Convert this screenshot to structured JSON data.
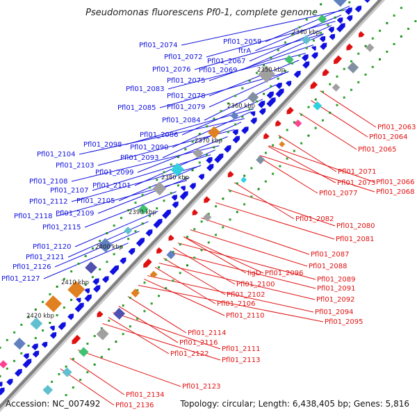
{
  "header": {
    "title": "Pseudomonas fluorescens Pf0-1, complete genome"
  },
  "footer": {
    "accession": "Accession: NC_007492",
    "summary": "Topology: circular; Length: 6,438,405 bp; Genes: 5,816"
  },
  "colors": {
    "forward_gene": "#1010e0",
    "reverse_gene": "#e01010",
    "backbone": "#909090",
    "tick_green": "#1a8a1a"
  },
  "scale_ticks": [
    "2340 kbp",
    "2350 kbp",
    "2360 kbp",
    "2370 kbp",
    "2380 kbp",
    "2390 kbp",
    "2400 kbp",
    "2410 kbp",
    "2420 kbp"
  ],
  "labels_left": [
    "Pfl01_2059",
    "ftrA",
    "Pfl01_2074",
    "Pfl01_2072",
    "Pfl01_2067",
    "Pfl01_2076",
    "Pfl01_2069",
    "Pfl01_2075",
    "Pfl01_2083",
    "Pfl01_2078",
    "Pfl01_2085",
    "Pfl01_2079",
    "Pfl01_2084",
    "Pfl01_2086",
    "Pfl01_2098",
    "Pfl01_2090",
    "Pfl01_2104",
    "Pfl01_2093",
    "Pfl01_2103",
    "Pfl01_2099",
    "Pfl01_2108",
    "Pfl01_2101",
    "Pfl01_2107",
    "Pfl01_2112",
    "Pfl01_2105",
    "Pfl01_2109",
    "Pfl01_2118",
    "Pfl01_2115",
    "Pfl01_2120",
    "Pfl01_2121",
    "Pfl01_2126",
    "Pfl01_2127"
  ],
  "labels_right": [
    "Pfl01_2063",
    "Pfl01_2064",
    "Pfl01_2065",
    "Pfl01_2071",
    "Pfl01_2066",
    "Pfl01_2073",
    "Pfl01_2068",
    "Pfl01_2077",
    "Pfl01_2082",
    "Pfl01_2080",
    "Pfl01_2081",
    "Pfl01_2087",
    "Pfl01_2088",
    "ligD",
    "Pfl01_2096",
    "Pfl01_2089",
    "Pfl01_2100",
    "Pfl01_2091",
    "Pfl01_2102",
    "Pfl01_2092",
    "Pfl01_2106",
    "Pfl01_2094",
    "Pfl01_2110",
    "Pfl01_2095",
    "Pfl01_2114",
    "Pfl01_2116",
    "Pfl01_2111",
    "Pfl01_2122",
    "Pfl01_2113",
    "Pfl01_2123",
    "Pfl01_2134",
    "Pfl01_2136"
  ]
}
